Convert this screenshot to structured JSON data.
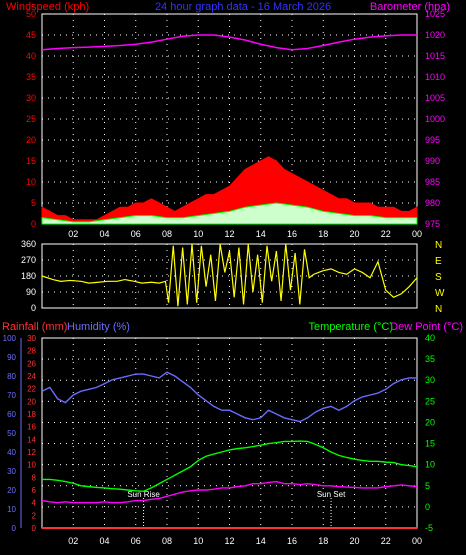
{
  "header": {
    "left_title": "Windspeed (kph)",
    "center_title": "24 hour graph data - 16 March 2026",
    "right_title": "Barometer (hpa)"
  },
  "colors": {
    "windspeed": "#ff0000",
    "gust_fill": "#ff0000",
    "avg_wind": "#00ff00",
    "wind_base": "#ffffff",
    "barometer": "#ff00ff",
    "direction": "#ffff00",
    "humidity": "#6b6bff",
    "temperature": "#00ff00",
    "dewpoint": "#ff00ff",
    "rainfall": "#ff3030",
    "title": "#3333ff",
    "grid": "#ffffff"
  },
  "panel_labels": {
    "rain": "Rainfall (mm)",
    "humidity": "Humidity (%)",
    "temperature": "Temperature (°C)",
    "dewpoint": "Dew Point (°C)",
    "sunrise": "Sun Rise",
    "sunset": "Sun Set"
  },
  "chart_data": [
    {
      "type": "area",
      "name": "wind_barometer",
      "title": "24 hour graph data - 16 March 2026",
      "x_ticks": [
        "02",
        "04",
        "06",
        "08",
        "10",
        "12",
        "14",
        "16",
        "18",
        "20",
        "22",
        "00"
      ],
      "xlim": [
        0,
        24
      ],
      "y_left": {
        "label": "Windspeed (kph)",
        "ticks": [
          0,
          5,
          10,
          15,
          20,
          25,
          30,
          35,
          40,
          45,
          50
        ],
        "ylim": [
          0,
          50
        ]
      },
      "y_right": {
        "label": "Barometer (hpa)",
        "ticks": [
          975,
          980,
          985,
          990,
          995,
          1000,
          1005,
          1010,
          1015,
          1020,
          1025
        ],
        "ylim": [
          975,
          1025
        ]
      },
      "series": [
        {
          "name": "Windspeed (kph)",
          "axis": "left",
          "x": [
            0,
            0.5,
            1,
            1.5,
            2,
            2.5,
            3,
            3.5,
            4,
            4.5,
            5,
            5.5,
            6,
            6.5,
            7,
            7.5,
            8,
            8.5,
            9,
            9.5,
            10,
            10.5,
            11,
            11.5,
            12,
            12.5,
            13,
            13.5,
            14,
            14.5,
            15,
            15.5,
            16,
            16.5,
            17,
            17.5,
            18,
            18.5,
            19,
            19.5,
            20,
            20.5,
            21,
            21.5,
            22,
            22.5,
            23,
            23.5,
            24
          ],
          "values": [
            4,
            3,
            2,
            2,
            1,
            1,
            1,
            1,
            2,
            3,
            4,
            4,
            5,
            5,
            6,
            5,
            4,
            3,
            4,
            5,
            6,
            7,
            7,
            8,
            9,
            11,
            13,
            14,
            15,
            16,
            15,
            13,
            12,
            11,
            10,
            9,
            8,
            7,
            6,
            6,
            5,
            5,
            5,
            4,
            4,
            4,
            3,
            3,
            4
          ]
        },
        {
          "name": "Average Wind (kph)",
          "axis": "left",
          "x": [
            0,
            1,
            2,
            3,
            4,
            5,
            6,
            7,
            8,
            9,
            10,
            11,
            12,
            13,
            14,
            15,
            16,
            17,
            18,
            19,
            20,
            21,
            22,
            23,
            24
          ],
          "values": [
            1.5,
            1,
            0.5,
            0.5,
            1,
            1.5,
            2,
            2,
            1.5,
            1.5,
            2,
            2.5,
            3,
            4,
            4.5,
            5,
            4.5,
            4,
            3,
            2.5,
            2,
            2,
            1.5,
            1.5,
            1.5
          ]
        },
        {
          "name": "Barometer (hpa)",
          "axis": "right",
          "x": [
            0,
            1,
            2,
            3,
            4,
            5,
            6,
            7,
            8,
            9,
            10,
            11,
            12,
            13,
            14,
            15,
            16,
            17,
            18,
            19,
            20,
            21,
            22,
            23,
            24
          ],
          "values": [
            1016.5,
            1016.8,
            1017.0,
            1017.1,
            1017.3,
            1017.5,
            1017.8,
            1018.3,
            1019.0,
            1019.7,
            1020.0,
            1020.0,
            1019.5,
            1018.8,
            1017.8,
            1017.0,
            1016.5,
            1016.8,
            1017.5,
            1018.3,
            1019.0,
            1019.5,
            1019.8,
            1020.0,
            1020.0
          ]
        }
      ]
    },
    {
      "type": "line",
      "name": "wind_direction",
      "x_ticks": [
        "02",
        "04",
        "06",
        "08",
        "10",
        "12",
        "14",
        "16",
        "18",
        "20",
        "22",
        "00"
      ],
      "xlim": [
        0,
        24
      ],
      "y_left": {
        "ticks": [
          0,
          90,
          180,
          270,
          360
        ],
        "ylim": [
          0,
          360
        ]
      },
      "y_right": {
        "ticks": [
          "N",
          "W",
          "S",
          "E",
          "N"
        ]
      },
      "series": [
        {
          "name": "Wind Direction",
          "x": [
            0,
            0.7,
            1.2,
            1.8,
            2.5,
            3.0,
            3.6,
            4.2,
            4.8,
            5.3,
            5.9,
            6.4,
            7.0,
            7.5,
            7.9,
            8.1,
            8.4,
            8.7,
            9.0,
            9.3,
            9.6,
            9.9,
            10.2,
            10.5,
            10.8,
            11.1,
            11.4,
            11.7,
            12.0,
            12.3,
            12.6,
            12.9,
            13.2,
            13.5,
            13.8,
            14.1,
            14.4,
            14.7,
            15.0,
            15.3,
            15.6,
            15.9,
            16.2,
            16.5,
            16.8,
            17.1,
            17.4,
            17.7,
            18.0,
            18.5,
            19.0,
            19.5,
            20.0,
            20.5,
            21.0,
            21.5,
            22.0,
            22.5,
            23.0,
            23.5,
            24.0
          ],
          "values": [
            180,
            160,
            150,
            155,
            150,
            140,
            145,
            150,
            150,
            160,
            150,
            140,
            145,
            140,
            150,
            30,
            350,
            10,
            340,
            20,
            360,
            30,
            350,
            120,
            300,
            40,
            360,
            200,
            320,
            60,
            340,
            20,
            360,
            90,
            300,
            30,
            350,
            150,
            320,
            40,
            360,
            100,
            310,
            20,
            330,
            170,
            190,
            200,
            210,
            220,
            200,
            190,
            220,
            200,
            170,
            260,
            100,
            60,
            80,
            120,
            170
          ]
        }
      ]
    },
    {
      "type": "line",
      "name": "rain_humidity_temperature",
      "x_ticks": [
        "02",
        "04",
        "06",
        "08",
        "10",
        "12",
        "14",
        "16",
        "18",
        "20",
        "22",
        "00"
      ],
      "xlim": [
        0,
        24
      ],
      "y_humidity": {
        "label": "Humidity (%)",
        "ticks": [
          0,
          10,
          20,
          30,
          40,
          50,
          60,
          70,
          80,
          90,
          100
        ],
        "ylim": [
          0,
          100
        ]
      },
      "y_rain": {
        "label": "Rainfall (mm)",
        "ticks": [
          0,
          2,
          4,
          6,
          8,
          10,
          12,
          14,
          16,
          18,
          20,
          22,
          24,
          26,
          28,
          30
        ],
        "ylim": [
          0,
          30
        ]
      },
      "y_right": {
        "label": "Temperature (°C) Dew Point (°C)",
        "ticks": [
          -5,
          0,
          5,
          10,
          15,
          20,
          25,
          30,
          35,
          40
        ],
        "ylim": [
          -5,
          40
        ]
      },
      "annotations": [
        {
          "label": "Sun Rise",
          "x": 6.5
        },
        {
          "label": "Sun Set",
          "x": 18.5
        }
      ],
      "series": [
        {
          "name": "Humidity (%)",
          "axis": "humidity",
          "x": [
            0,
            0.5,
            1,
            1.5,
            2,
            2.5,
            3,
            3.5,
            4,
            4.5,
            5,
            5.5,
            6,
            6.5,
            7,
            7.5,
            8,
            8.5,
            9,
            9.5,
            10,
            10.5,
            11,
            11.5,
            12,
            12.5,
            13,
            13.5,
            14,
            14.5,
            15,
            15.5,
            16,
            16.5,
            17,
            17.5,
            18,
            18.5,
            19,
            19.5,
            20,
            20.5,
            21,
            21.5,
            22,
            22.5,
            23,
            23.5,
            24
          ],
          "values": [
            72,
            74,
            68,
            66,
            70,
            72,
            73,
            74,
            76,
            78,
            79,
            80,
            81,
            81,
            80,
            79,
            82,
            80,
            77,
            74,
            70,
            67,
            64,
            62,
            62,
            60,
            58,
            57,
            58,
            62,
            60,
            58,
            57,
            56,
            58,
            61,
            63,
            64,
            62,
            64,
            67,
            69,
            70,
            71,
            73,
            76,
            78,
            79,
            79
          ]
        },
        {
          "name": "Temperature (°C)",
          "axis": "right",
          "x": [
            0,
            0.5,
            1,
            1.5,
            2,
            2.5,
            3,
            3.5,
            4,
            4.5,
            5,
            5.5,
            6,
            6.5,
            7,
            7.5,
            8,
            8.5,
            9,
            9.5,
            10,
            10.5,
            11,
            11.5,
            12,
            12.5,
            13,
            13.5,
            14,
            14.5,
            15,
            15.5,
            16,
            16.5,
            17,
            17.5,
            18,
            18.5,
            19,
            19.5,
            20,
            20.5,
            21,
            21.5,
            22,
            22.5,
            23,
            23.5,
            24
          ],
          "values": [
            6.5,
            6.5,
            6.3,
            6.0,
            5.6,
            5.0,
            4.8,
            4.6,
            4.5,
            4.3,
            4.2,
            4.0,
            3.8,
            3.7,
            4.5,
            5.5,
            6.5,
            7.5,
            8.5,
            9.5,
            11.0,
            12.0,
            12.5,
            13.0,
            13.5,
            13.8,
            14.0,
            14.3,
            14.6,
            15.0,
            15.2,
            15.5,
            15.5,
            15.6,
            15.5,
            14.8,
            14.0,
            13.0,
            12.2,
            11.7,
            11.3,
            11.0,
            10.8,
            10.8,
            10.6,
            10.5,
            10.0,
            9.8,
            9.5
          ]
        },
        {
          "name": "Dew Point (°C)",
          "axis": "right",
          "x": [
            0,
            0.5,
            1,
            1.5,
            2,
            2.5,
            3,
            3.5,
            4,
            4.5,
            5,
            5.5,
            6,
            6.5,
            7,
            7.5,
            8,
            8.5,
            9,
            9.5,
            10,
            10.5,
            11,
            11.5,
            12,
            12.5,
            13,
            13.5,
            14,
            14.5,
            15,
            15.5,
            16,
            16.5,
            17,
            17.5,
            18,
            18.5,
            19,
            19.5,
            20,
            20.5,
            21,
            21.5,
            22,
            22.5,
            23,
            23.5,
            24
          ],
          "values": [
            1.5,
            1.2,
            1.0,
            1.2,
            1.0,
            1.0,
            1.0,
            1.0,
            1.2,
            1.0,
            1.0,
            1.2,
            1.5,
            1.5,
            1.8,
            2.0,
            2.5,
            3.0,
            3.5,
            3.8,
            4.0,
            4.0,
            4.2,
            4.5,
            4.5,
            4.8,
            5.0,
            5.5,
            5.5,
            5.8,
            6.0,
            5.5,
            5.5,
            5.3,
            5.5,
            5.3,
            5.0,
            5.0,
            4.8,
            4.7,
            4.6,
            4.5,
            4.5,
            4.5,
            4.8,
            5.0,
            5.2,
            5.0,
            4.8
          ]
        },
        {
          "name": "Rainfall (mm)",
          "axis": "rain",
          "x": [
            0,
            24
          ],
          "values": [
            0,
            0
          ]
        }
      ]
    }
  ]
}
